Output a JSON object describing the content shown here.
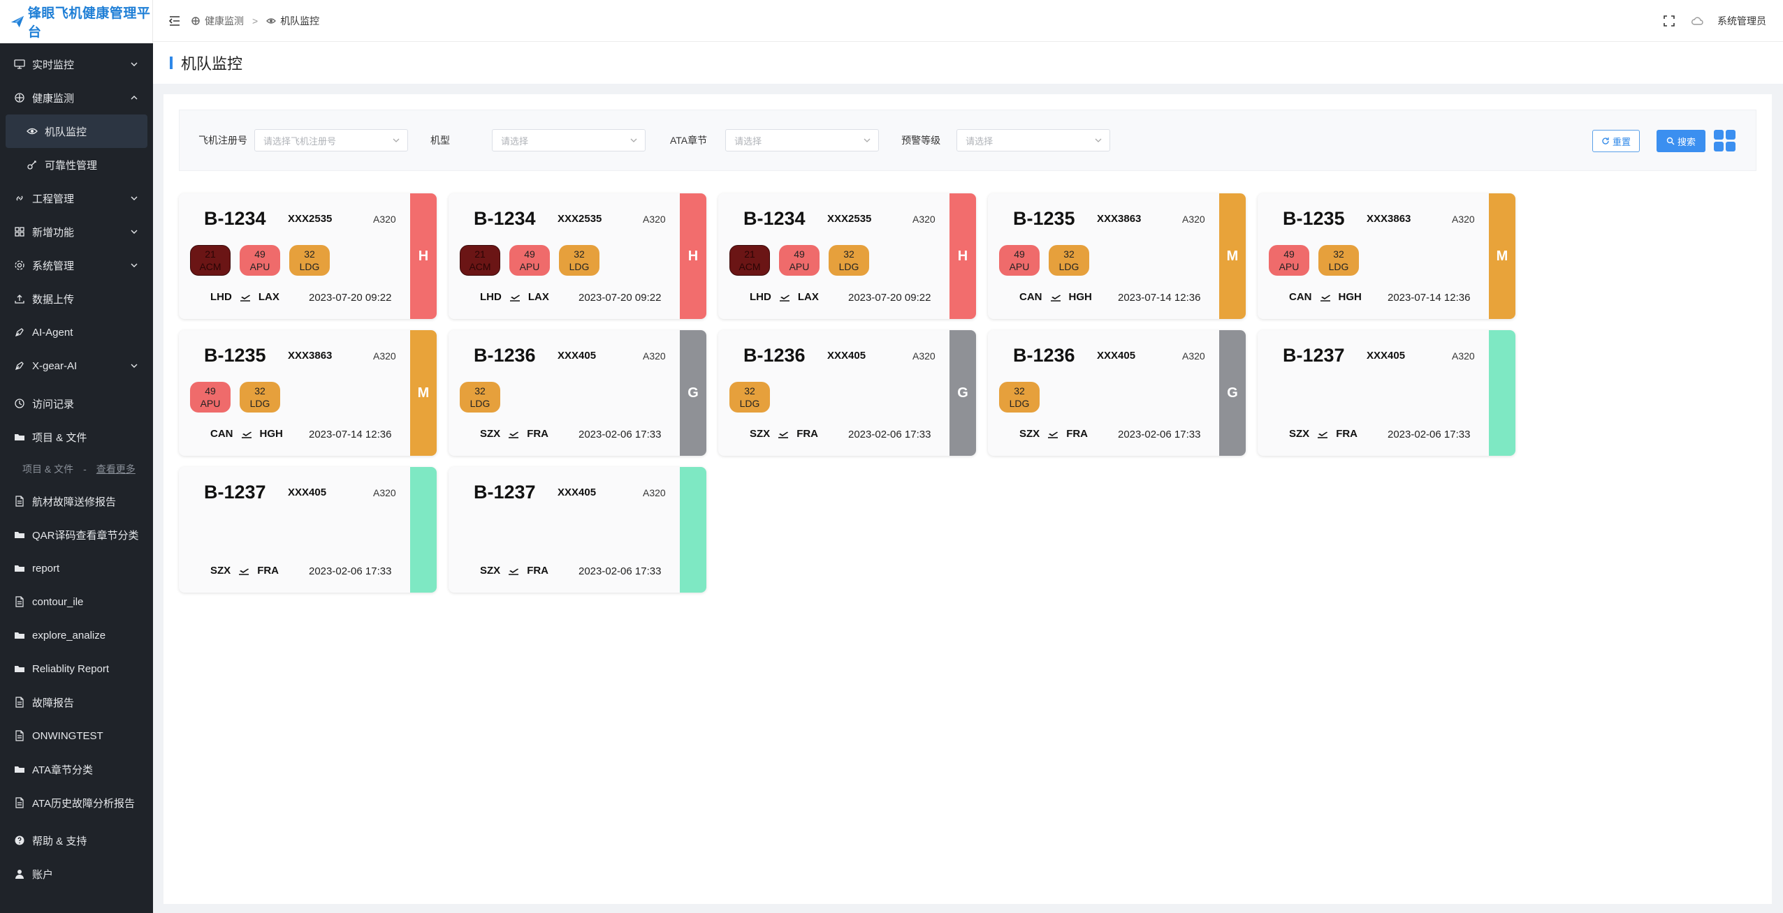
{
  "app": {
    "title": "锋眼飞机健康管理平台"
  },
  "sidebar": {
    "items": [
      {
        "label": "实时监控",
        "icon": "monitor-icon",
        "chevron": true
      },
      {
        "label": "健康监测",
        "icon": "health-icon",
        "chevron": true,
        "expanded": true
      },
      {
        "label": "机队监控",
        "icon": "eye-icon",
        "sub": true,
        "active": true
      },
      {
        "label": "可靠性管理",
        "icon": "reliability-icon",
        "sub": true
      },
      {
        "label": "工程管理",
        "icon": "link-icon",
        "chevron": true
      },
      {
        "label": "新增功能",
        "icon": "grid-icon",
        "chevron": true
      },
      {
        "label": "系统管理",
        "icon": "gear-icon",
        "chevron": true
      },
      {
        "label": "数据上传",
        "icon": "upload-icon"
      },
      {
        "label": "AI-Agent",
        "icon": "pen-icon"
      },
      {
        "label": "X-gear-AI",
        "icon": "pen-icon",
        "chevron": true
      }
    ],
    "files": [
      {
        "label": "访问记录",
        "icon": "history-icon"
      },
      {
        "label": "项目 & 文件",
        "icon": "folder-icon"
      }
    ],
    "group_label": "项目 & 文件",
    "group_dash": "-",
    "group_more": "查看更多",
    "docs": [
      {
        "label": "航材故障送修报告",
        "icon": "file-icon"
      },
      {
        "label": "QAR译码查看章节分类",
        "icon": "folder-icon"
      },
      {
        "label": "report",
        "icon": "folder-icon"
      },
      {
        "label": "contour_ile",
        "icon": "file-icon"
      },
      {
        "label": "explore_analize",
        "icon": "folder-icon"
      },
      {
        "label": "Reliablity Report",
        "icon": "folder-icon"
      },
      {
        "label": "故障报告",
        "icon": "file-icon"
      },
      {
        "label": "ONWINGTEST",
        "icon": "file-icon"
      },
      {
        "label": "ATA章节分类",
        "icon": "folder-icon"
      },
      {
        "label": "ATA历史故障分析报告",
        "icon": "file-icon"
      }
    ],
    "bottom": [
      {
        "label": "帮助 & 支持",
        "icon": "help-icon"
      },
      {
        "label": "账户",
        "icon": "user-icon"
      }
    ]
  },
  "header": {
    "breadcrumb": [
      "健康监测",
      "机队监控"
    ],
    "breadcrumb_sep": ">",
    "user": "系统管理员"
  },
  "page": {
    "title": "机队监控"
  },
  "filters": {
    "reg": {
      "label": "飞机注册号",
      "placeholder": "请选择飞机注册号"
    },
    "type": {
      "label": "机型",
      "placeholder": "请选择"
    },
    "ata": {
      "label": "ATA章节",
      "placeholder": "请选择"
    },
    "level": {
      "label": "预警等级",
      "placeholder": "请选择"
    },
    "reset_label": "重置",
    "search_label": "搜索"
  },
  "colors": {
    "H": "#f26d6d",
    "M": "#e8a33a",
    "G": "#8f9196",
    "N": "#7ee8c3"
  },
  "cards": [
    {
      "reg": "B-1234",
      "code": "XXX2535",
      "type": "A320",
      "level": "H",
      "badges": [
        {
          "n": "21",
          "t": "ACM"
        },
        {
          "n": "49",
          "t": "APU"
        },
        {
          "n": "32",
          "t": "LDG"
        }
      ],
      "from": "LHD",
      "to": "LAX",
      "time": "2023-07-20 09:22"
    },
    {
      "reg": "B-1234",
      "code": "XXX2535",
      "type": "A320",
      "level": "H",
      "badges": [
        {
          "n": "21",
          "t": "ACM"
        },
        {
          "n": "49",
          "t": "APU"
        },
        {
          "n": "32",
          "t": "LDG"
        }
      ],
      "from": "LHD",
      "to": "LAX",
      "time": "2023-07-20 09:22"
    },
    {
      "reg": "B-1234",
      "code": "XXX2535",
      "type": "A320",
      "level": "H",
      "badges": [
        {
          "n": "21",
          "t": "ACM"
        },
        {
          "n": "49",
          "t": "APU"
        },
        {
          "n": "32",
          "t": "LDG"
        }
      ],
      "from": "LHD",
      "to": "LAX",
      "time": "2023-07-20 09:22"
    },
    {
      "reg": "B-1235",
      "code": "XXX3863",
      "type": "A320",
      "level": "M",
      "badges": [
        {
          "n": "49",
          "t": "APU"
        },
        {
          "n": "32",
          "t": "LDG"
        }
      ],
      "from": "CAN",
      "to": "HGH",
      "time": "2023-07-14 12:36"
    },
    {
      "reg": "B-1235",
      "code": "XXX3863",
      "type": "A320",
      "level": "M",
      "badges": [
        {
          "n": "49",
          "t": "APU"
        },
        {
          "n": "32",
          "t": "LDG"
        }
      ],
      "from": "CAN",
      "to": "HGH",
      "time": "2023-07-14 12:36"
    },
    {
      "reg": "B-1235",
      "code": "XXX3863",
      "type": "A320",
      "level": "M",
      "badges": [
        {
          "n": "49",
          "t": "APU"
        },
        {
          "n": "32",
          "t": "LDG"
        }
      ],
      "from": "CAN",
      "to": "HGH",
      "time": "2023-07-14 12:36"
    },
    {
      "reg": "B-1236",
      "code": "XXX405",
      "type": "A320",
      "level": "G",
      "badges": [
        {
          "n": "32",
          "t": "LDG"
        }
      ],
      "from": "SZX",
      "to": "FRA",
      "time": "2023-02-06 17:33"
    },
    {
      "reg": "B-1236",
      "code": "XXX405",
      "type": "A320",
      "level": "G",
      "badges": [
        {
          "n": "32",
          "t": "LDG"
        }
      ],
      "from": "SZX",
      "to": "FRA",
      "time": "2023-02-06 17:33"
    },
    {
      "reg": "B-1236",
      "code": "XXX405",
      "type": "A320",
      "level": "G",
      "badges": [
        {
          "n": "32",
          "t": "LDG"
        }
      ],
      "from": "SZX",
      "to": "FRA",
      "time": "2023-02-06 17:33"
    },
    {
      "reg": "B-1237",
      "code": "XXX405",
      "type": "A320",
      "level": "",
      "badges": [],
      "from": "SZX",
      "to": "FRA",
      "time": "2023-02-06 17:33"
    },
    {
      "reg": "B-1237",
      "code": "XXX405",
      "type": "A320",
      "level": "",
      "badges": [],
      "from": "SZX",
      "to": "FRA",
      "time": "2023-02-06 17:33"
    },
    {
      "reg": "B-1237",
      "code": "XXX405",
      "type": "A320",
      "level": "",
      "badges": [],
      "from": "SZX",
      "to": "FRA",
      "time": "2023-02-06 17:33"
    }
  ]
}
